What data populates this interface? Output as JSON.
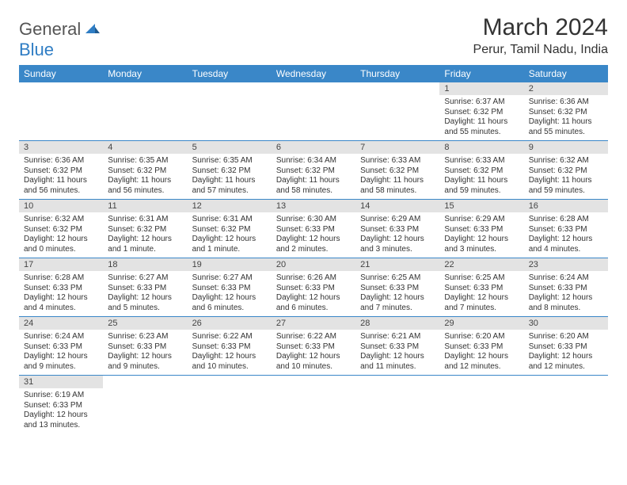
{
  "logo": {
    "line1": "General",
    "line2": "Blue"
  },
  "header": {
    "month_title": "March 2024",
    "location": "Perur, Tamil Nadu, India"
  },
  "colors": {
    "header_bg": "#3a87c8",
    "header_text": "#ffffff",
    "daynum_bg": "#e3e3e3",
    "cell_border": "#3a87c8",
    "logo_accent": "#2f7dc4"
  },
  "weekday_labels": [
    "Sunday",
    "Monday",
    "Tuesday",
    "Wednesday",
    "Thursday",
    "Friday",
    "Saturday"
  ],
  "weeks": [
    [
      null,
      null,
      null,
      null,
      null,
      {
        "day": "1",
        "sunrise": "Sunrise: 6:37 AM",
        "sunset": "Sunset: 6:32 PM",
        "daylight": "Daylight: 11 hours and 55 minutes."
      },
      {
        "day": "2",
        "sunrise": "Sunrise: 6:36 AM",
        "sunset": "Sunset: 6:32 PM",
        "daylight": "Daylight: 11 hours and 55 minutes."
      }
    ],
    [
      {
        "day": "3",
        "sunrise": "Sunrise: 6:36 AM",
        "sunset": "Sunset: 6:32 PM",
        "daylight": "Daylight: 11 hours and 56 minutes."
      },
      {
        "day": "4",
        "sunrise": "Sunrise: 6:35 AM",
        "sunset": "Sunset: 6:32 PM",
        "daylight": "Daylight: 11 hours and 56 minutes."
      },
      {
        "day": "5",
        "sunrise": "Sunrise: 6:35 AM",
        "sunset": "Sunset: 6:32 PM",
        "daylight": "Daylight: 11 hours and 57 minutes."
      },
      {
        "day": "6",
        "sunrise": "Sunrise: 6:34 AM",
        "sunset": "Sunset: 6:32 PM",
        "daylight": "Daylight: 11 hours and 58 minutes."
      },
      {
        "day": "7",
        "sunrise": "Sunrise: 6:33 AM",
        "sunset": "Sunset: 6:32 PM",
        "daylight": "Daylight: 11 hours and 58 minutes."
      },
      {
        "day": "8",
        "sunrise": "Sunrise: 6:33 AM",
        "sunset": "Sunset: 6:32 PM",
        "daylight": "Daylight: 11 hours and 59 minutes."
      },
      {
        "day": "9",
        "sunrise": "Sunrise: 6:32 AM",
        "sunset": "Sunset: 6:32 PM",
        "daylight": "Daylight: 11 hours and 59 minutes."
      }
    ],
    [
      {
        "day": "10",
        "sunrise": "Sunrise: 6:32 AM",
        "sunset": "Sunset: 6:32 PM",
        "daylight": "Daylight: 12 hours and 0 minutes."
      },
      {
        "day": "11",
        "sunrise": "Sunrise: 6:31 AM",
        "sunset": "Sunset: 6:32 PM",
        "daylight": "Daylight: 12 hours and 1 minute."
      },
      {
        "day": "12",
        "sunrise": "Sunrise: 6:31 AM",
        "sunset": "Sunset: 6:32 PM",
        "daylight": "Daylight: 12 hours and 1 minute."
      },
      {
        "day": "13",
        "sunrise": "Sunrise: 6:30 AM",
        "sunset": "Sunset: 6:33 PM",
        "daylight": "Daylight: 12 hours and 2 minutes."
      },
      {
        "day": "14",
        "sunrise": "Sunrise: 6:29 AM",
        "sunset": "Sunset: 6:33 PM",
        "daylight": "Daylight: 12 hours and 3 minutes."
      },
      {
        "day": "15",
        "sunrise": "Sunrise: 6:29 AM",
        "sunset": "Sunset: 6:33 PM",
        "daylight": "Daylight: 12 hours and 3 minutes."
      },
      {
        "day": "16",
        "sunrise": "Sunrise: 6:28 AM",
        "sunset": "Sunset: 6:33 PM",
        "daylight": "Daylight: 12 hours and 4 minutes."
      }
    ],
    [
      {
        "day": "17",
        "sunrise": "Sunrise: 6:28 AM",
        "sunset": "Sunset: 6:33 PM",
        "daylight": "Daylight: 12 hours and 4 minutes."
      },
      {
        "day": "18",
        "sunrise": "Sunrise: 6:27 AM",
        "sunset": "Sunset: 6:33 PM",
        "daylight": "Daylight: 12 hours and 5 minutes."
      },
      {
        "day": "19",
        "sunrise": "Sunrise: 6:27 AM",
        "sunset": "Sunset: 6:33 PM",
        "daylight": "Daylight: 12 hours and 6 minutes."
      },
      {
        "day": "20",
        "sunrise": "Sunrise: 6:26 AM",
        "sunset": "Sunset: 6:33 PM",
        "daylight": "Daylight: 12 hours and 6 minutes."
      },
      {
        "day": "21",
        "sunrise": "Sunrise: 6:25 AM",
        "sunset": "Sunset: 6:33 PM",
        "daylight": "Daylight: 12 hours and 7 minutes."
      },
      {
        "day": "22",
        "sunrise": "Sunrise: 6:25 AM",
        "sunset": "Sunset: 6:33 PM",
        "daylight": "Daylight: 12 hours and 7 minutes."
      },
      {
        "day": "23",
        "sunrise": "Sunrise: 6:24 AM",
        "sunset": "Sunset: 6:33 PM",
        "daylight": "Daylight: 12 hours and 8 minutes."
      }
    ],
    [
      {
        "day": "24",
        "sunrise": "Sunrise: 6:24 AM",
        "sunset": "Sunset: 6:33 PM",
        "daylight": "Daylight: 12 hours and 9 minutes."
      },
      {
        "day": "25",
        "sunrise": "Sunrise: 6:23 AM",
        "sunset": "Sunset: 6:33 PM",
        "daylight": "Daylight: 12 hours and 9 minutes."
      },
      {
        "day": "26",
        "sunrise": "Sunrise: 6:22 AM",
        "sunset": "Sunset: 6:33 PM",
        "daylight": "Daylight: 12 hours and 10 minutes."
      },
      {
        "day": "27",
        "sunrise": "Sunrise: 6:22 AM",
        "sunset": "Sunset: 6:33 PM",
        "daylight": "Daylight: 12 hours and 10 minutes."
      },
      {
        "day": "28",
        "sunrise": "Sunrise: 6:21 AM",
        "sunset": "Sunset: 6:33 PM",
        "daylight": "Daylight: 12 hours and 11 minutes."
      },
      {
        "day": "29",
        "sunrise": "Sunrise: 6:20 AM",
        "sunset": "Sunset: 6:33 PM",
        "daylight": "Daylight: 12 hours and 12 minutes."
      },
      {
        "day": "30",
        "sunrise": "Sunrise: 6:20 AM",
        "sunset": "Sunset: 6:33 PM",
        "daylight": "Daylight: 12 hours and 12 minutes."
      }
    ],
    [
      {
        "day": "31",
        "sunrise": "Sunrise: 6:19 AM",
        "sunset": "Sunset: 6:33 PM",
        "daylight": "Daylight: 12 hours and 13 minutes."
      },
      null,
      null,
      null,
      null,
      null,
      null
    ]
  ]
}
